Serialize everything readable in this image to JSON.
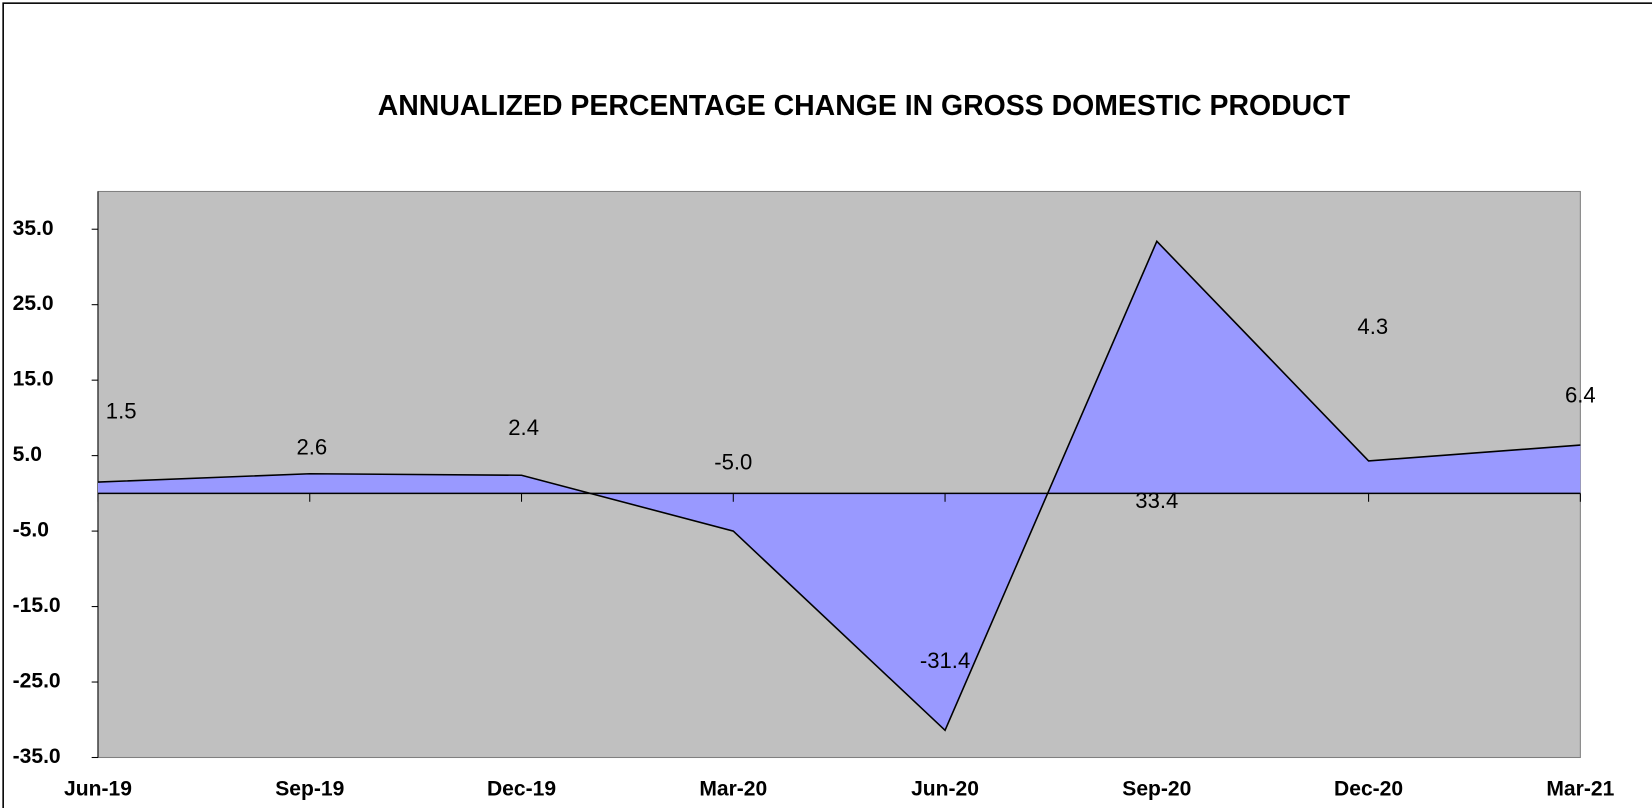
{
  "chart_data": {
    "type": "area",
    "title": "ANNUALIZED PERCENTAGE CHANGE IN GROSS DOMESTIC PRODUCT",
    "categories": [
      "Jun-19",
      "Sep-19",
      "Dec-19",
      "Mar-20",
      "Jun-20",
      "Sep-20",
      "Dec-20",
      "Mar-21"
    ],
    "values": [
      1.5,
      2.6,
      2.4,
      -5.0,
      -31.4,
      33.4,
      4.3,
      6.4
    ],
    "value_labels": [
      "1.5",
      "2.6",
      "2.4",
      "-5.0",
      "-31.4",
      "33.4",
      "4.3",
      "6.4"
    ],
    "color": "#9999ff",
    "ylim": [
      -35,
      40
    ],
    "yticks": [
      {
        "value": -35,
        "label": "-35.0"
      },
      {
        "value": -25,
        "label": "-25.0"
      },
      {
        "value": -15,
        "label": "-15.0"
      },
      {
        "value": -5,
        "label": "-5.0"
      },
      {
        "value": 5,
        "label": "5.0"
      },
      {
        "value": 15,
        "label": "15.0"
      },
      {
        "value": 25,
        "label": "25.0"
      },
      {
        "value": 35,
        "label": "35.0"
      }
    ]
  }
}
